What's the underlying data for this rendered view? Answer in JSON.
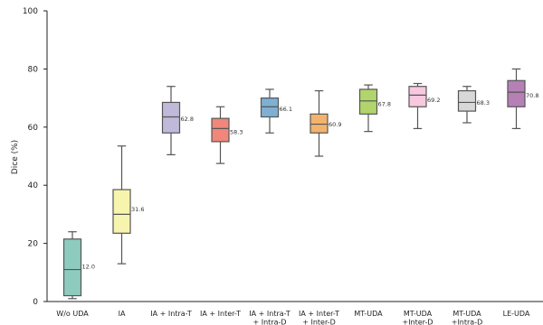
{
  "chart_data": {
    "type": "box",
    "title": "",
    "xlabel": "",
    "ylabel": "Dice (%)",
    "ylim": [
      0,
      100
    ],
    "yticks": [
      0,
      20,
      40,
      60,
      80,
      100
    ],
    "grid": false,
    "categories": [
      [
        "W/o UDA"
      ],
      [
        "IA"
      ],
      [
        "IA + Intra-T"
      ],
      [
        "IA + Inter-T"
      ],
      [
        "IA + Intra-T",
        "+ Intra-D"
      ],
      [
        "IA + Inter-T",
        "+ Inter-D"
      ],
      [
        "MT-UDA"
      ],
      [
        "MT-UDA",
        "+Inter-D"
      ],
      [
        "MT-UDA",
        "+Intra-D"
      ],
      [
        "LE-UDA"
      ]
    ],
    "boxes": [
      {
        "min": 1.0,
        "q1": 2.0,
        "median": 11.0,
        "q3": 21.5,
        "max": 24.0,
        "mean_label": "12.0",
        "color": "#8ecbbf"
      },
      {
        "min": 13.0,
        "q1": 23.5,
        "median": 30.0,
        "q3": 38.5,
        "max": 53.5,
        "mean_label": "31.6",
        "color": "#f7f4ae"
      },
      {
        "min": 50.5,
        "q1": 58.0,
        "median": 63.5,
        "q3": 68.5,
        "max": 74.0,
        "mean_label": "62.8",
        "color": "#c0b9da"
      },
      {
        "min": 47.5,
        "q1": 55.0,
        "median": 59.5,
        "q3": 63.0,
        "max": 67.0,
        "mean_label": "58.3",
        "color": "#f0877a"
      },
      {
        "min": 58.0,
        "q1": 63.5,
        "median": 67.0,
        "q3": 70.0,
        "max": 73.0,
        "mean_label": "66.1",
        "color": "#7fb0d3"
      },
      {
        "min": 50.0,
        "q1": 58.0,
        "median": 61.0,
        "q3": 64.5,
        "max": 72.5,
        "mean_label": "60.9",
        "color": "#f2b36e"
      },
      {
        "min": 58.5,
        "q1": 64.5,
        "median": 69.0,
        "q3": 73.0,
        "max": 74.5,
        "mean_label": "67.8",
        "color": "#b1d56c"
      },
      {
        "min": 59.5,
        "q1": 67.0,
        "median": 71.0,
        "q3": 74.0,
        "max": 75.0,
        "mean_label": "69.2",
        "color": "#f7c8df"
      },
      {
        "min": 61.5,
        "q1": 65.5,
        "median": 68.5,
        "q3": 72.5,
        "max": 74.0,
        "mean_label": "68.3",
        "color": "#d8d8d8"
      },
      {
        "min": 59.5,
        "q1": 67.0,
        "median": 72.0,
        "q3": 76.0,
        "max": 80.0,
        "mean_label": "70.8",
        "color": "#b67fb6"
      }
    ]
  }
}
